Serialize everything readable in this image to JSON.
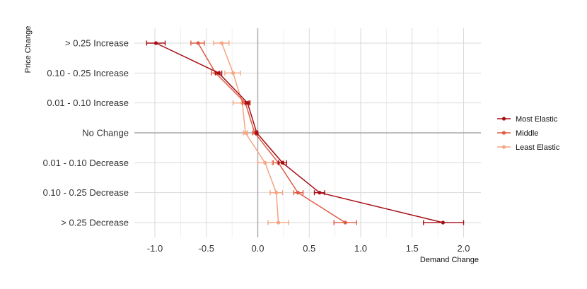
{
  "chart_data": {
    "type": "line",
    "orientation": "horizontal",
    "xlabel": "Demand Change",
    "ylabel": "Price Change",
    "xlim": [
      -1.1,
      2.15
    ],
    "xticks": [
      -1.0,
      -0.5,
      0.0,
      0.5,
      1.0,
      1.5,
      2.0
    ],
    "xtick_labels": [
      "-1.0",
      "-0.5",
      "0.0",
      "0.5",
      "1.0",
      "1.5",
      "2.0"
    ],
    "categories": [
      "> 0.25 Increase",
      "0.10 - 0.25 Increase",
      "0.01 - 0.10 Increase",
      "No Change",
      "0.01 - 0.10 Decrease",
      "0.10 - 0.25 Decrease",
      "> 0.25 Decrease"
    ],
    "reference_lines": {
      "x": 0,
      "category": "No Change"
    },
    "grid": true,
    "legend_position": "right",
    "series": [
      {
        "name": "Most Elastic",
        "color": "#a50f15",
        "values": [
          -0.99,
          -0.38,
          -0.1,
          -0.01,
          0.24,
          0.6,
          1.8
        ],
        "lower": [
          -1.08,
          -0.41,
          -0.12,
          -0.02,
          0.2,
          0.55,
          1.61
        ],
        "upper": [
          -0.9,
          -0.35,
          -0.08,
          0.0,
          0.28,
          0.65,
          2.0
        ]
      },
      {
        "name": "Middle",
        "color": "#de5b43",
        "values": [
          -0.58,
          -0.41,
          -0.12,
          -0.03,
          0.2,
          0.39,
          0.85
        ],
        "lower": [
          -0.65,
          -0.45,
          -0.15,
          -0.05,
          0.15,
          0.35,
          0.74
        ],
        "upper": [
          -0.52,
          -0.37,
          -0.09,
          -0.01,
          0.25,
          0.44,
          0.96
        ]
      },
      {
        "name": "Least Elastic",
        "color": "#f4a582",
        "values": [
          -0.35,
          -0.24,
          -0.15,
          -0.12,
          0.07,
          0.18,
          0.2
        ],
        "lower": [
          -0.43,
          -0.32,
          -0.24,
          -0.14,
          0.0,
          0.12,
          0.1
        ],
        "upper": [
          -0.28,
          -0.17,
          -0.07,
          -0.1,
          0.14,
          0.24,
          0.3
        ]
      }
    ]
  }
}
